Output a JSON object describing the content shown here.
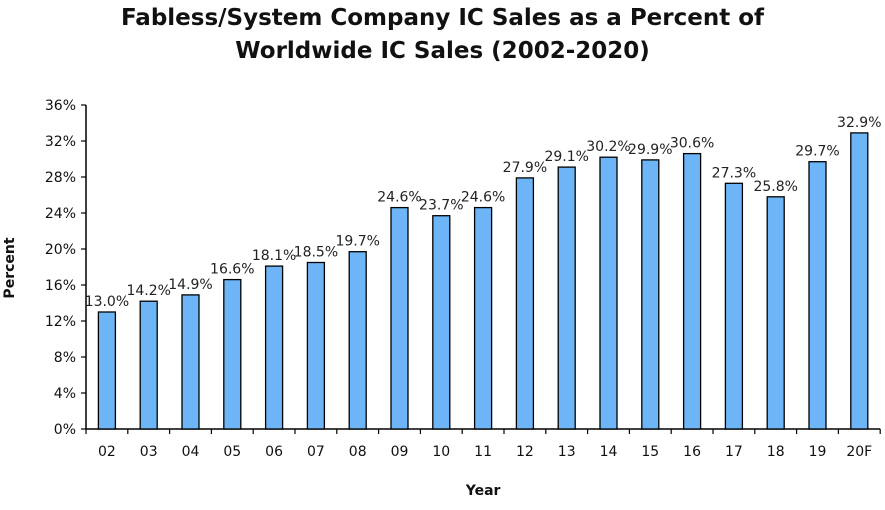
{
  "chart_data": {
    "type": "bar",
    "title_line1": "Fabless/System Company IC Sales as a Percent of",
    "title_line2": "Worldwide IC Sales (2002-2020)",
    "xlabel": "Year",
    "ylabel": "Percent",
    "categories": [
      "02",
      "03",
      "04",
      "05",
      "06",
      "07",
      "08",
      "09",
      "10",
      "11",
      "12",
      "13",
      "14",
      "15",
      "16",
      "17",
      "18",
      "19",
      "20F"
    ],
    "values": [
      13.0,
      14.2,
      14.9,
      16.6,
      18.1,
      18.5,
      19.7,
      24.6,
      23.7,
      24.6,
      27.9,
      29.1,
      30.2,
      29.9,
      30.6,
      27.3,
      25.8,
      29.7,
      32.9
    ],
    "data_labels": [
      "13.0%",
      "14.2%",
      "14.9%",
      "16.6%",
      "18.1%",
      "18.5%",
      "19.7%",
      "24.6%",
      "23.7%",
      "24.6%",
      "27.9%",
      "29.1%",
      "30.2%",
      "29.9%",
      "30.6%",
      "27.3%",
      "25.8%",
      "29.7%",
      "32.9%"
    ],
    "yticks": [
      "0%",
      "4%",
      "8%",
      "12%",
      "16%",
      "20%",
      "24%",
      "28%",
      "32%",
      "36%"
    ],
    "ylim": [
      0,
      36
    ],
    "grid": false,
    "legend": "none",
    "bar_color": "#6db5f6"
  }
}
